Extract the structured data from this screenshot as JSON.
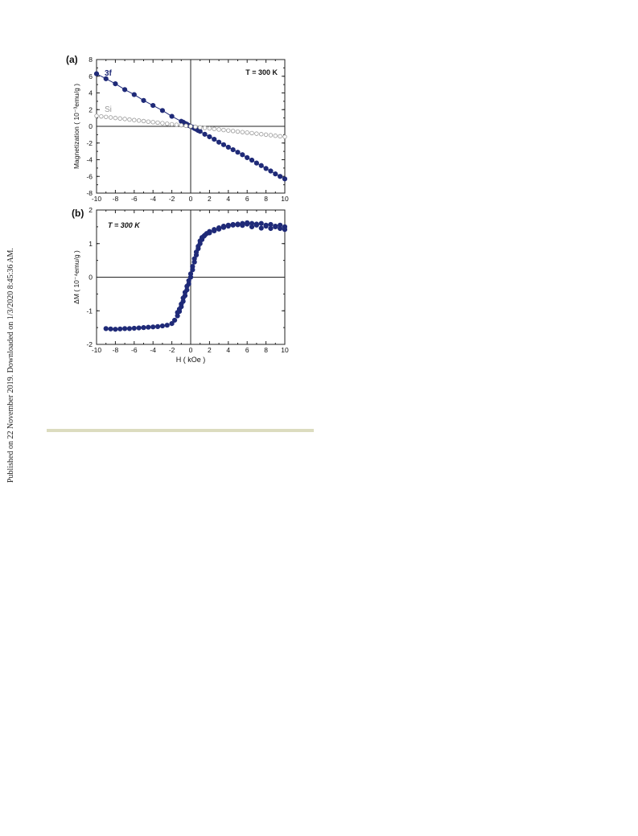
{
  "side_note": "Published on 22 November 2019. Downloaded on 1/3/2020 8:45:36 AM.",
  "colors": {
    "navy": "#1f2a78",
    "gray": "#9a9a9a",
    "rule": "#dcdcbf"
  },
  "chart_data": [
    {
      "type": "scatter",
      "panel_label": "(a)",
      "annotation": "T =  300 K",
      "ylabel": "Magnetization  ( 10⁻³emu/g )",
      "xlabel": "",
      "xlim": [
        -10,
        10
      ],
      "ylim": [
        -8,
        8
      ],
      "xticks": [
        "-10",
        "-8",
        "-6",
        "-4",
        "-2",
        "0",
        "2",
        "4",
        "6",
        "8",
        "10"
      ],
      "yticks": [
        "8",
        "6",
        "4",
        "2",
        "0",
        "-2",
        "-4",
        "-6",
        "-8"
      ],
      "series": [
        {
          "name": "3f",
          "marker": "filled",
          "x": [
            -10,
            -9,
            -8,
            -7,
            -6,
            -5,
            -4,
            -3,
            -2,
            -1,
            -0.8,
            -0.6,
            -0.4,
            -0.2,
            0,
            0.2,
            0.4,
            0.6,
            0.8,
            1,
            1.5,
            2,
            2.5,
            3,
            3.5,
            4,
            4.5,
            5,
            5.5,
            6,
            6.5,
            7,
            7.5,
            8,
            8.5,
            9,
            9.5,
            10
          ],
          "y": [
            6.3,
            5.7,
            5.1,
            4.4,
            3.8,
            3.1,
            2.5,
            1.9,
            1.2,
            0.6,
            0.5,
            0.35,
            0.25,
            0.1,
            0,
            -0.1,
            -0.25,
            -0.35,
            -0.5,
            -0.6,
            -0.95,
            -1.25,
            -1.55,
            -1.9,
            -2.2,
            -2.5,
            -2.8,
            -3.1,
            -3.4,
            -3.75,
            -4.05,
            -4.4,
            -4.7,
            -5.05,
            -5.35,
            -5.7,
            -6.0,
            -6.3
          ]
        },
        {
          "name": "Si",
          "marker": "open",
          "x": [
            -10,
            -9.5,
            -9,
            -8.5,
            -8,
            -7.5,
            -7,
            -6.5,
            -6,
            -5.5,
            -5,
            -4.5,
            -4,
            -3.5,
            -3,
            -2.5,
            -2,
            -1.5,
            -1,
            -0.5,
            0,
            0.5,
            1,
            1.5,
            2,
            2.5,
            3,
            3.5,
            4,
            4.5,
            5,
            5.5,
            6,
            6.5,
            7,
            7.5,
            8,
            8.5,
            9,
            9.5,
            10
          ],
          "y": [
            1.25,
            1.19,
            1.13,
            1.06,
            1.0,
            0.94,
            0.88,
            0.81,
            0.75,
            0.69,
            0.63,
            0.56,
            0.5,
            0.44,
            0.38,
            0.31,
            0.25,
            0.19,
            0.13,
            0.06,
            0,
            -0.06,
            -0.13,
            -0.19,
            -0.25,
            -0.31,
            -0.38,
            -0.44,
            -0.5,
            -0.56,
            -0.63,
            -0.69,
            -0.75,
            -0.81,
            -0.88,
            -0.94,
            -1.0,
            -1.06,
            -1.13,
            -1.19,
            -1.25
          ]
        }
      ]
    },
    {
      "type": "scatter",
      "panel_label": "(b)",
      "annotation": "T =  300 K",
      "ylabel": "ΔM   ( 10⁻⁴emu/g )",
      "xlabel": "H   ( kOe )",
      "xlim": [
        -10,
        10
      ],
      "ylim": [
        -2,
        2
      ],
      "xticks": [
        "-10",
        "-8",
        "-6",
        "-4",
        "-2",
        "0",
        "2",
        "4",
        "6",
        "8",
        "10"
      ],
      "yticks": [
        "2",
        "1",
        "0",
        "-1",
        "-2"
      ],
      "series": [
        {
          "name": "",
          "marker": "filled",
          "x": [
            -9,
            -8.5,
            -8,
            -7.5,
            -7,
            -6.5,
            -6,
            -5.5,
            -5,
            -4.5,
            -4,
            -3.5,
            -3,
            -2.5,
            -2,
            -1.7,
            -1.4,
            -1.2,
            -1,
            -0.8,
            -0.6,
            -0.4,
            -0.2,
            0,
            0.2,
            0.4,
            0.6,
            0.8,
            1,
            1.2,
            1.4,
            1.7,
            2,
            2.5,
            3,
            3.5,
            4,
            4.5,
            5,
            5.5,
            6,
            6.5,
            7,
            7.5,
            8,
            8.5,
            9,
            9.5,
            10
          ],
          "y": [
            -1.53,
            -1.54,
            -1.55,
            -1.54,
            -1.53,
            -1.53,
            -1.52,
            -1.51,
            -1.5,
            -1.49,
            -1.48,
            -1.47,
            -1.45,
            -1.43,
            -1.38,
            -1.28,
            -1.15,
            -1.02,
            -0.88,
            -0.72,
            -0.55,
            -0.38,
            -0.2,
            0,
            0.22,
            0.45,
            0.66,
            0.85,
            1.0,
            1.12,
            1.22,
            1.3,
            1.36,
            1.42,
            1.47,
            1.52,
            1.55,
            1.57,
            1.58,
            1.6,
            1.58,
            1.6,
            1.55,
            1.6,
            1.52,
            1.57,
            1.52,
            1.55,
            1.5
          ]
        },
        {
          "name": "",
          "marker": "filled",
          "x": [
            -1.4,
            -1.2,
            -1,
            -0.8,
            -0.6,
            -0.4,
            -0.2,
            0,
            0.2,
            0.4,
            0.6,
            0.8,
            1,
            1.2,
            1.5,
            2,
            2.5,
            3,
            3.5,
            4,
            4.5,
            5,
            5.5,
            6,
            6.5,
            7,
            7.5,
            8,
            8.5,
            9,
            9.5,
            10
          ],
          "y": [
            -1.05,
            -0.95,
            -0.8,
            -0.62,
            -0.45,
            -0.27,
            -0.1,
            0.1,
            0.32,
            0.55,
            0.75,
            0.92,
            1.08,
            1.18,
            1.25,
            1.32,
            1.38,
            1.43,
            1.48,
            1.52,
            1.55,
            1.56,
            1.54,
            1.62,
            1.5,
            1.58,
            1.46,
            1.55,
            1.45,
            1.5,
            1.45,
            1.42
          ]
        }
      ]
    }
  ]
}
